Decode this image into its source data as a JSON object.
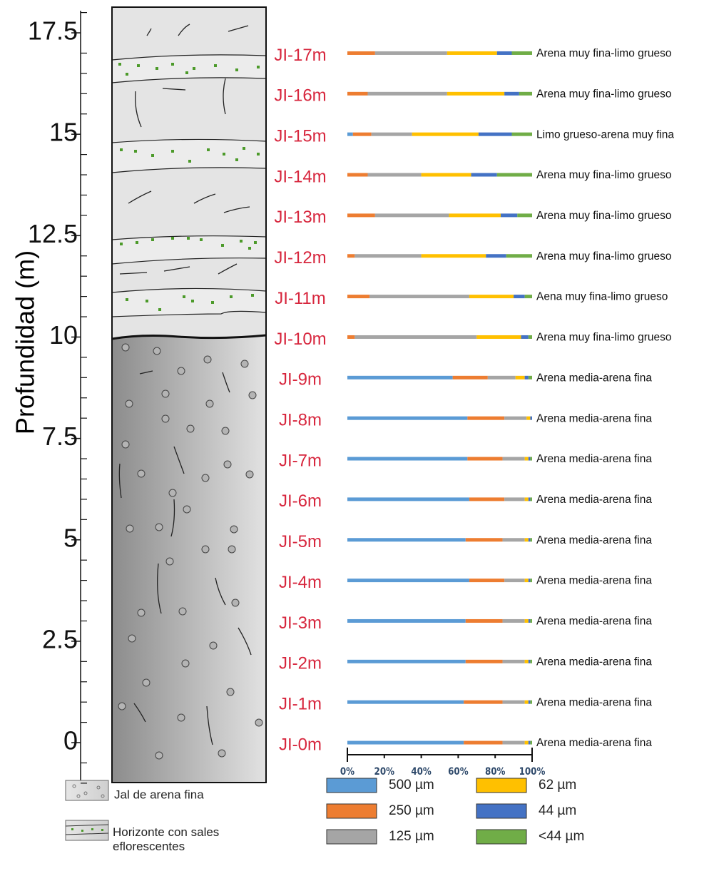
{
  "chart_data": {
    "type": "bar",
    "stacked": true,
    "orientation": "horizontal",
    "ylabel": "Profundidad (m)",
    "ylim": [
      -1,
      18
    ],
    "yticks": [
      0,
      2.5,
      5,
      7.5,
      10,
      12.5,
      15,
      17.5
    ],
    "minor_yticks": [
      -1,
      -0.5,
      0.5,
      1,
      1.5,
      2,
      3,
      3.5,
      4,
      4.5,
      5.5,
      6,
      6.5,
      7,
      8,
      8.5,
      9,
      9.5,
      10.5,
      11,
      11.5,
      12,
      13,
      13.5,
      14,
      14.5,
      15.5,
      16,
      16.5,
      17,
      18
    ],
    "categories": [
      "JI-0m",
      "JI-1m",
      "JI-2m",
      "JI-3m",
      "JI-4m",
      "JI-5m",
      "JI-6m",
      "JI-7m",
      "JI-8m",
      "JI-9m",
      "JI-10m",
      "JI-11m",
      "JI-12m",
      "JI-13m",
      "JI-14m",
      "JI-15m",
      "JI-16m",
      "JI-17m"
    ],
    "y": [
      0,
      1,
      2,
      3,
      4,
      5,
      6,
      7,
      8,
      9,
      10,
      11,
      12,
      13,
      14,
      15,
      16,
      17
    ],
    "textures": [
      "Arena media-arena fina",
      "Arena media-arena fina",
      "Arena media-arena fina",
      "Arena media-arena fina",
      "Arena media-arena fina",
      "Arena media-arena fina",
      "Arena media-arena fina",
      "Arena media-arena fina",
      "Arena media-arena fina",
      "Arena media-arena fina",
      "Arena muy fina-limo grueso",
      "Aena muy fina-limo grueso",
      "Arena muy fina-limo grueso",
      "Arena muy fina-limo grueso",
      "Arena muy fina-limo grueso",
      "Limo grueso-arena muy fina",
      "Arena muy fina-limo grueso",
      "Arena muy fina-limo grueso"
    ],
    "xlim": [
      0,
      100
    ],
    "xticks": [
      {
        "value": 0,
        "label": "0%"
      },
      {
        "value": 20,
        "label": "20%"
      },
      {
        "value": 40,
        "label": "40%"
      },
      {
        "value": 60,
        "label": "60%"
      },
      {
        "value": 80,
        "label": "80%"
      },
      {
        "value": 100,
        "label": "100%"
      }
    ],
    "series": [
      {
        "name": "500 µm",
        "color": "#5b9bd5",
        "values": [
          63,
          63,
          64,
          64,
          66,
          64,
          66,
          65,
          65,
          57,
          0,
          0,
          0,
          0,
          0,
          3,
          0,
          0
        ]
      },
      {
        "name": "250 µm",
        "color": "#ed7d31",
        "values": [
          21,
          21,
          20,
          20,
          19,
          20,
          19,
          19,
          20,
          19,
          4,
          12,
          4,
          15,
          11,
          10,
          11,
          15
        ]
      },
      {
        "name": "125 µm",
        "color": "#a5a5a5",
        "values": [
          12,
          12,
          12,
          12,
          11,
          12,
          11,
          12,
          12,
          15,
          66,
          54,
          36,
          40,
          29,
          22,
          43,
          39
        ]
      },
      {
        "name": "62 µm",
        "color": "#ffc000",
        "values": [
          2,
          2,
          2,
          2,
          2,
          2,
          2,
          2,
          2,
          5,
          24,
          24,
          35,
          28,
          27,
          36,
          31,
          27
        ]
      },
      {
        "name": "44 µm",
        "color": "#4472c4",
        "values": [
          1,
          1,
          1,
          1,
          1,
          1,
          1,
          1,
          1,
          2,
          4,
          6,
          11,
          9,
          14,
          18,
          8,
          8
        ]
      },
      {
        "name": "<44 µm",
        "color": "#70ad47",
        "values": [
          1,
          1,
          1,
          1,
          1,
          1,
          1,
          1,
          0,
          2,
          2,
          4,
          14,
          8,
          19,
          11,
          7,
          11
        ]
      }
    ],
    "column_legend": [
      "Jal de arena fina",
      "Horizonte con sales eflorescentes"
    ]
  }
}
